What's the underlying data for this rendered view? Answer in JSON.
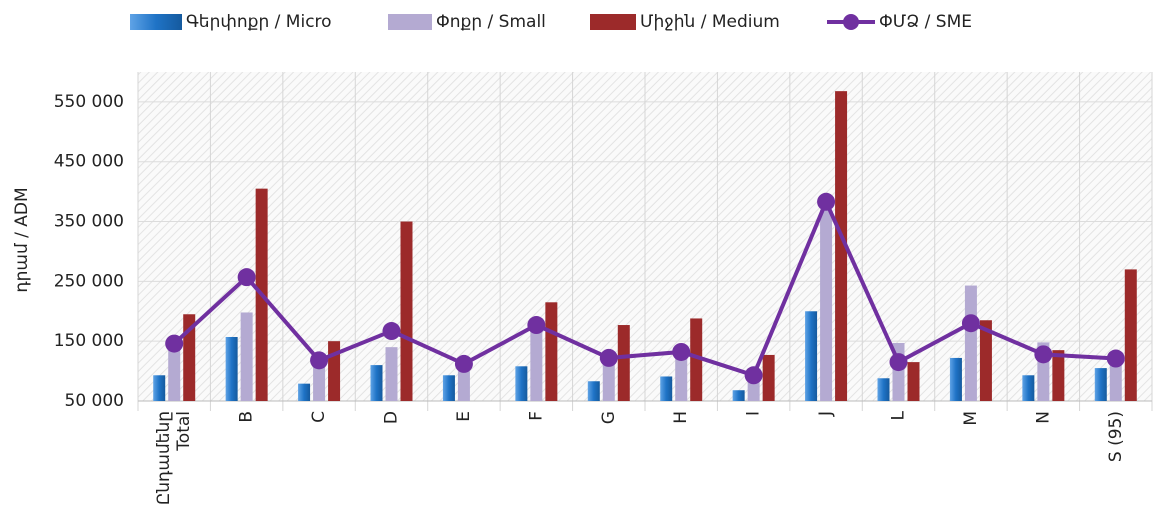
{
  "chart_data": {
    "type": "bar-line",
    "y_label": "դրամ / ADM",
    "categories": [
      "Ընդամենը\nTotal",
      "B",
      "C",
      "D",
      "E",
      "F",
      "G",
      "H",
      "I",
      "J",
      "L",
      "M",
      "N",
      "S (95)"
    ],
    "series": [
      {
        "name": "Գերփոքր / Micro",
        "type": "bar",
        "color": "#1f73c6",
        "values": [
          93000,
          157000,
          79000,
          110000,
          93000,
          108000,
          83000,
          91000,
          68000,
          200000,
          88000,
          122000,
          93000,
          105000
        ]
      },
      {
        "name": "Փոքր / Small",
        "type": "bar",
        "color": "#b4aad2",
        "values": [
          135000,
          198000,
          110000,
          140000,
          100000,
          170000,
          112000,
          123000,
          85000,
          370000,
          147000,
          243000,
          148000,
          115000
        ]
      },
      {
        "name": "Միջին / Medium",
        "type": "bar",
        "color": "#9c2a2a",
        "values": [
          195000,
          405000,
          150000,
          350000,
          null,
          215000,
          177000,
          188000,
          127000,
          568000,
          115000,
          185000,
          135000,
          270000
        ]
      },
      {
        "name": "ՓՄՁ / SME",
        "type": "line",
        "color": "#7030a0",
        "values": [
          146000,
          257000,
          118000,
          167000,
          112000,
          177000,
          122000,
          132000,
          93000,
          383000,
          115000,
          180000,
          128000,
          121000
        ]
      }
    ],
    "ylim": [
      50000,
      600000
    ],
    "yticks": [
      {
        "value": 50000,
        "label": "50 000"
      },
      {
        "value": 150000,
        "label": "150 000"
      },
      {
        "value": 250000,
        "label": "250 000"
      },
      {
        "value": 350000,
        "label": "350 000"
      },
      {
        "value": 450000,
        "label": "450 000"
      },
      {
        "value": 550000,
        "label": "550 000"
      }
    ],
    "grid": true,
    "legend": "top"
  }
}
